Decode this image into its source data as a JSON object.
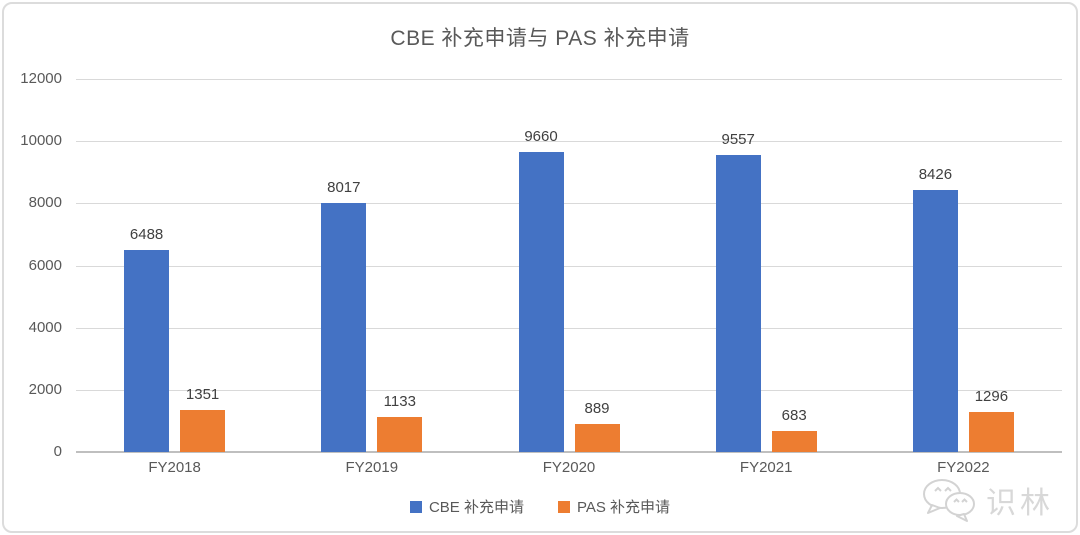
{
  "chart": {
    "title": "CBE 补充申请与 PAS 补充申请"
  },
  "chart_data": {
    "type": "bar",
    "title": "CBE 补充申请与 PAS 补充申请",
    "categories": [
      "FY2018",
      "FY2019",
      "FY2020",
      "FY2021",
      "FY2022"
    ],
    "series": [
      {
        "name": "CBE 补充申请",
        "color": "#4472C4",
        "values": [
          6488,
          8017,
          9660,
          9557,
          8426
        ]
      },
      {
        "name": "PAS 补充申请",
        "color": "#ED7D31",
        "values": [
          1351,
          1133,
          889,
          683,
          1296
        ]
      }
    ],
    "xlabel": "",
    "ylabel": "",
    "ylim": [
      0,
      12000
    ],
    "ytick_step": 2000,
    "yticks": [
      0,
      2000,
      4000,
      6000,
      8000,
      10000,
      12000
    ],
    "grid": true,
    "data_labels": true,
    "legend_position": "bottom"
  },
  "colors": {
    "series_blue": "#4472C4",
    "series_orange": "#ED7D31",
    "gridline": "#D9D9D9",
    "axis_line": "#BFBFBF",
    "axis_text": "#595959",
    "data_label_text": "#404040",
    "title_text": "#595959",
    "card_border": "#DCDCDC",
    "watermark": "#D2D2D2"
  },
  "watermark": {
    "text": "识林",
    "icon": "chat-bubbles-icon"
  }
}
